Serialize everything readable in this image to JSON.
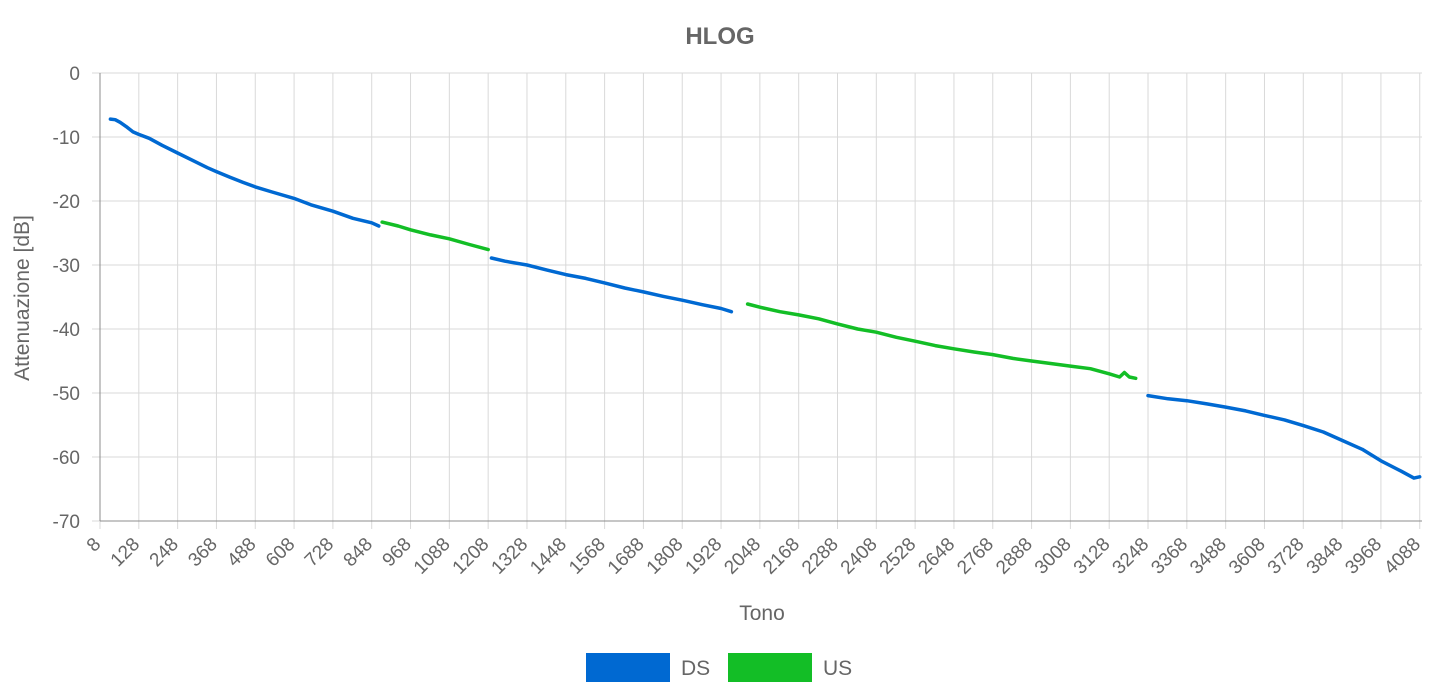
{
  "chart_data": {
    "type": "line",
    "title": "HLOG",
    "xlabel": "Tono",
    "ylabel": "Attenuazione [dB]",
    "xlim": [
      8,
      4095
    ],
    "ylim": [
      -70,
      0
    ],
    "grid": true,
    "legend_position": "bottom",
    "x_ticks": [
      "8",
      "128",
      "248",
      "368",
      "488",
      "608",
      "728",
      "848",
      "968",
      "1088",
      "1208",
      "1328",
      "1448",
      "1568",
      "1688",
      "1808",
      "1928",
      "2048",
      "2168",
      "2288",
      "2408",
      "2528",
      "2648",
      "2768",
      "2888",
      "3008",
      "3128",
      "3248",
      "3368",
      "3488",
      "3608",
      "3728",
      "3848",
      "3968",
      "4088"
    ],
    "y_ticks": [
      "0",
      "-10",
      "-20",
      "-30",
      "-40",
      "-50",
      "-60",
      "-70"
    ],
    "series": [
      {
        "name": "DS",
        "color": "#0069d2",
        "segments": [
          [
            [
              40,
              -7.2
            ],
            [
              55,
              -7.3
            ],
            [
              70,
              -7.7
            ],
            [
              90,
              -8.4
            ],
            [
              110,
              -9.2
            ],
            [
              128,
              -9.6
            ],
            [
              160,
              -10.2
            ],
            [
              200,
              -11.3
            ],
            [
              248,
              -12.5
            ],
            [
              300,
              -13.8
            ],
            [
              340,
              -14.8
            ],
            [
              368,
              -15.4
            ],
            [
              410,
              -16.3
            ],
            [
              450,
              -17.1
            ],
            [
              488,
              -17.8
            ],
            [
              540,
              -18.6
            ],
            [
              608,
              -19.6
            ],
            [
              660,
              -20.6
            ],
            [
              728,
              -21.6
            ],
            [
              790,
              -22.7
            ],
            [
              848,
              -23.4
            ],
            [
              870,
              -23.9
            ]
          ],
          [
            [
              1218,
              -28.9
            ],
            [
              1260,
              -29.4
            ],
            [
              1328,
              -30.0
            ],
            [
              1390,
              -30.8
            ],
            [
              1448,
              -31.5
            ],
            [
              1510,
              -32.1
            ],
            [
              1568,
              -32.8
            ],
            [
              1630,
              -33.6
            ],
            [
              1688,
              -34.2
            ],
            [
              1750,
              -34.9
            ],
            [
              1808,
              -35.5
            ],
            [
              1870,
              -36.2
            ],
            [
              1928,
              -36.8
            ],
            [
              1960,
              -37.3
            ]
          ],
          [
            [
              3248,
              -50.4
            ],
            [
              3310,
              -50.9
            ],
            [
              3368,
              -51.2
            ],
            [
              3430,
              -51.7
            ],
            [
              3488,
              -52.2
            ],
            [
              3550,
              -52.8
            ],
            [
              3608,
              -53.5
            ],
            [
              3670,
              -54.2
            ],
            [
              3728,
              -55.1
            ],
            [
              3790,
              -56.1
            ],
            [
              3848,
              -57.4
            ],
            [
              3910,
              -58.8
            ],
            [
              3968,
              -60.6
            ],
            [
              4030,
              -62.2
            ],
            [
              4070,
              -63.3
            ],
            [
              4088,
              -63.1
            ]
          ]
        ]
      },
      {
        "name": "US",
        "color": "#13be26",
        "segments": [
          [
            [
              880,
              -23.3
            ],
            [
              930,
              -23.9
            ],
            [
              968,
              -24.5
            ],
            [
              1030,
              -25.3
            ],
            [
              1088,
              -25.9
            ],
            [
              1150,
              -26.8
            ],
            [
              1208,
              -27.6
            ]
          ],
          [
            [
              2010,
              -36.1
            ],
            [
              2048,
              -36.6
            ],
            [
              2110,
              -37.3
            ],
            [
              2168,
              -37.8
            ],
            [
              2230,
              -38.4
            ],
            [
              2288,
              -39.2
            ],
            [
              2350,
              -40.0
            ],
            [
              2408,
              -40.5
            ],
            [
              2470,
              -41.3
            ],
            [
              2528,
              -41.9
            ],
            [
              2590,
              -42.6
            ],
            [
              2648,
              -43.1
            ],
            [
              2710,
              -43.6
            ],
            [
              2768,
              -44.0
            ],
            [
              2830,
              -44.6
            ],
            [
              2888,
              -45.0
            ],
            [
              2950,
              -45.4
            ],
            [
              3008,
              -45.8
            ],
            [
              3070,
              -46.2
            ],
            [
              3128,
              -47.0
            ],
            [
              3160,
              -47.5
            ],
            [
              3175,
              -46.8
            ],
            [
              3190,
              -47.5
            ],
            [
              3210,
              -47.7
            ]
          ]
        ]
      }
    ]
  }
}
